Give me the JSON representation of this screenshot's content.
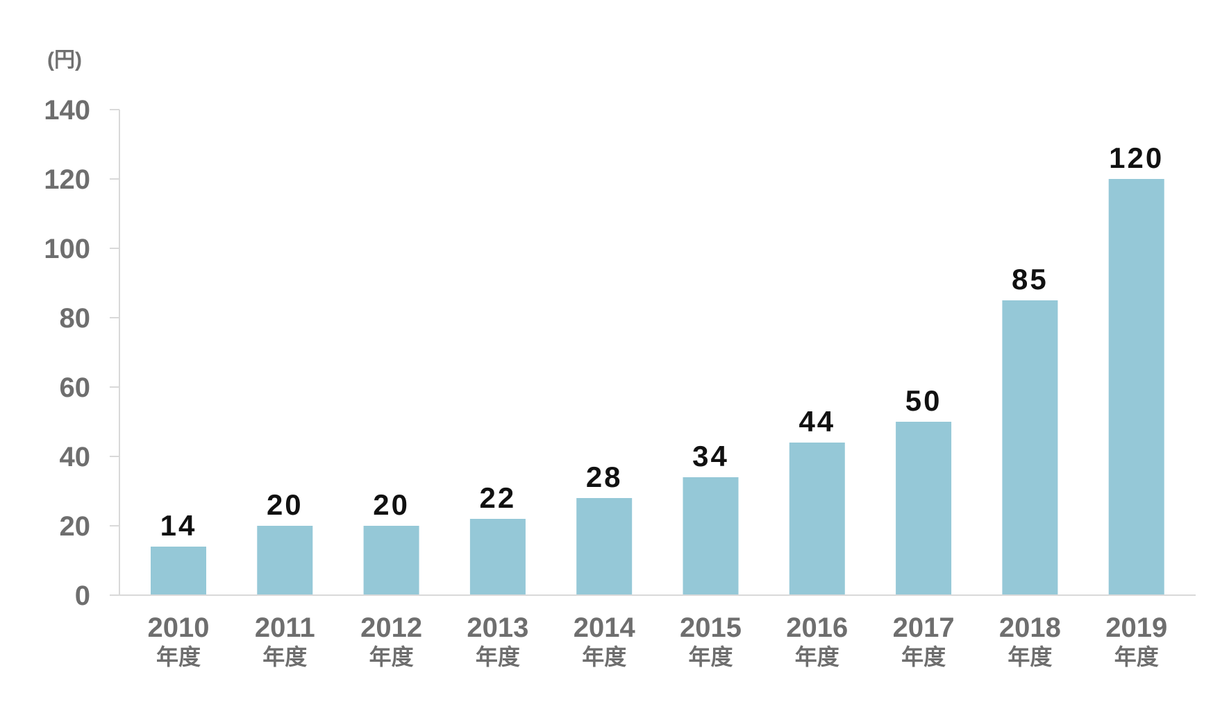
{
  "chart_data": {
    "type": "bar",
    "unit_label": "(円)",
    "categories": [
      "2010",
      "2011",
      "2012",
      "2013",
      "2014",
      "2015",
      "2016",
      "2017",
      "2018",
      "2019"
    ],
    "category_suffix": "年度",
    "values": [
      14,
      20,
      20,
      22,
      28,
      34,
      44,
      50,
      85,
      120
    ],
    "value_labels": [
      "14",
      "20",
      "20",
      "22",
      "28",
      "34",
      "44",
      "50",
      "85",
      "120"
    ],
    "ylim": [
      0,
      140
    ],
    "yticks": [
      0,
      20,
      40,
      60,
      80,
      100,
      120,
      140
    ],
    "grid": false,
    "colors": {
      "bar": "#95c8d7",
      "axis": "#d9d9d9",
      "tick_text": "#6e6e6e",
      "data_label": "#111111"
    }
  }
}
